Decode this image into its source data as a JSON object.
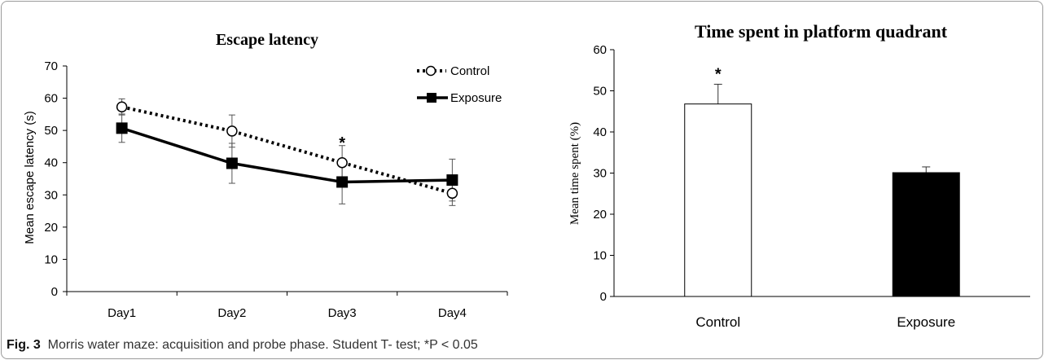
{
  "caption": {
    "label": "Fig. 3",
    "text": "Morris water maze: acquisition and probe phase. Student T- test; *P < 0.05"
  },
  "chart_data": [
    {
      "type": "line",
      "title": "Escape latency",
      "xlabel": "",
      "ylabel": "Mean escape latency (s)",
      "ylim": [
        0,
        70
      ],
      "yticks": [
        0,
        10,
        20,
        30,
        40,
        50,
        60,
        70
      ],
      "categories": [
        "Day1",
        "Day2",
        "Day3",
        "Day4"
      ],
      "legend_position": "top-right",
      "series": [
        {
          "name": "Control",
          "style": "dotted",
          "marker": "open-circle",
          "color": "#000000",
          "values": [
            57.3,
            49.8,
            40.0,
            30.5
          ],
          "errors": [
            2.5,
            5.0,
            5.3,
            3.8
          ]
        },
        {
          "name": "Exposure",
          "style": "solid",
          "marker": "filled-square",
          "color": "#000000",
          "values": [
            50.7,
            39.8,
            34.0,
            34.6
          ],
          "errors": [
            4.4,
            6.2,
            6.8,
            6.5
          ]
        }
      ],
      "annotations": [
        {
          "text": "*",
          "category": "Day3",
          "y": 47
        }
      ]
    },
    {
      "type": "bar",
      "title": "Time spent in platform quadrant",
      "xlabel": "",
      "ylabel": "Mean time spent (%)",
      "ylim": [
        0,
        60
      ],
      "yticks": [
        0,
        10,
        20,
        30,
        40,
        50,
        60
      ],
      "categories": [
        "Control",
        "Exposure"
      ],
      "values": [
        46.8,
        30.1
      ],
      "errors": [
        4.8,
        1.4
      ],
      "fills": [
        "#ffffff",
        "#000000"
      ],
      "annotations": [
        {
          "text": "*",
          "category": "Control"
        }
      ]
    }
  ]
}
